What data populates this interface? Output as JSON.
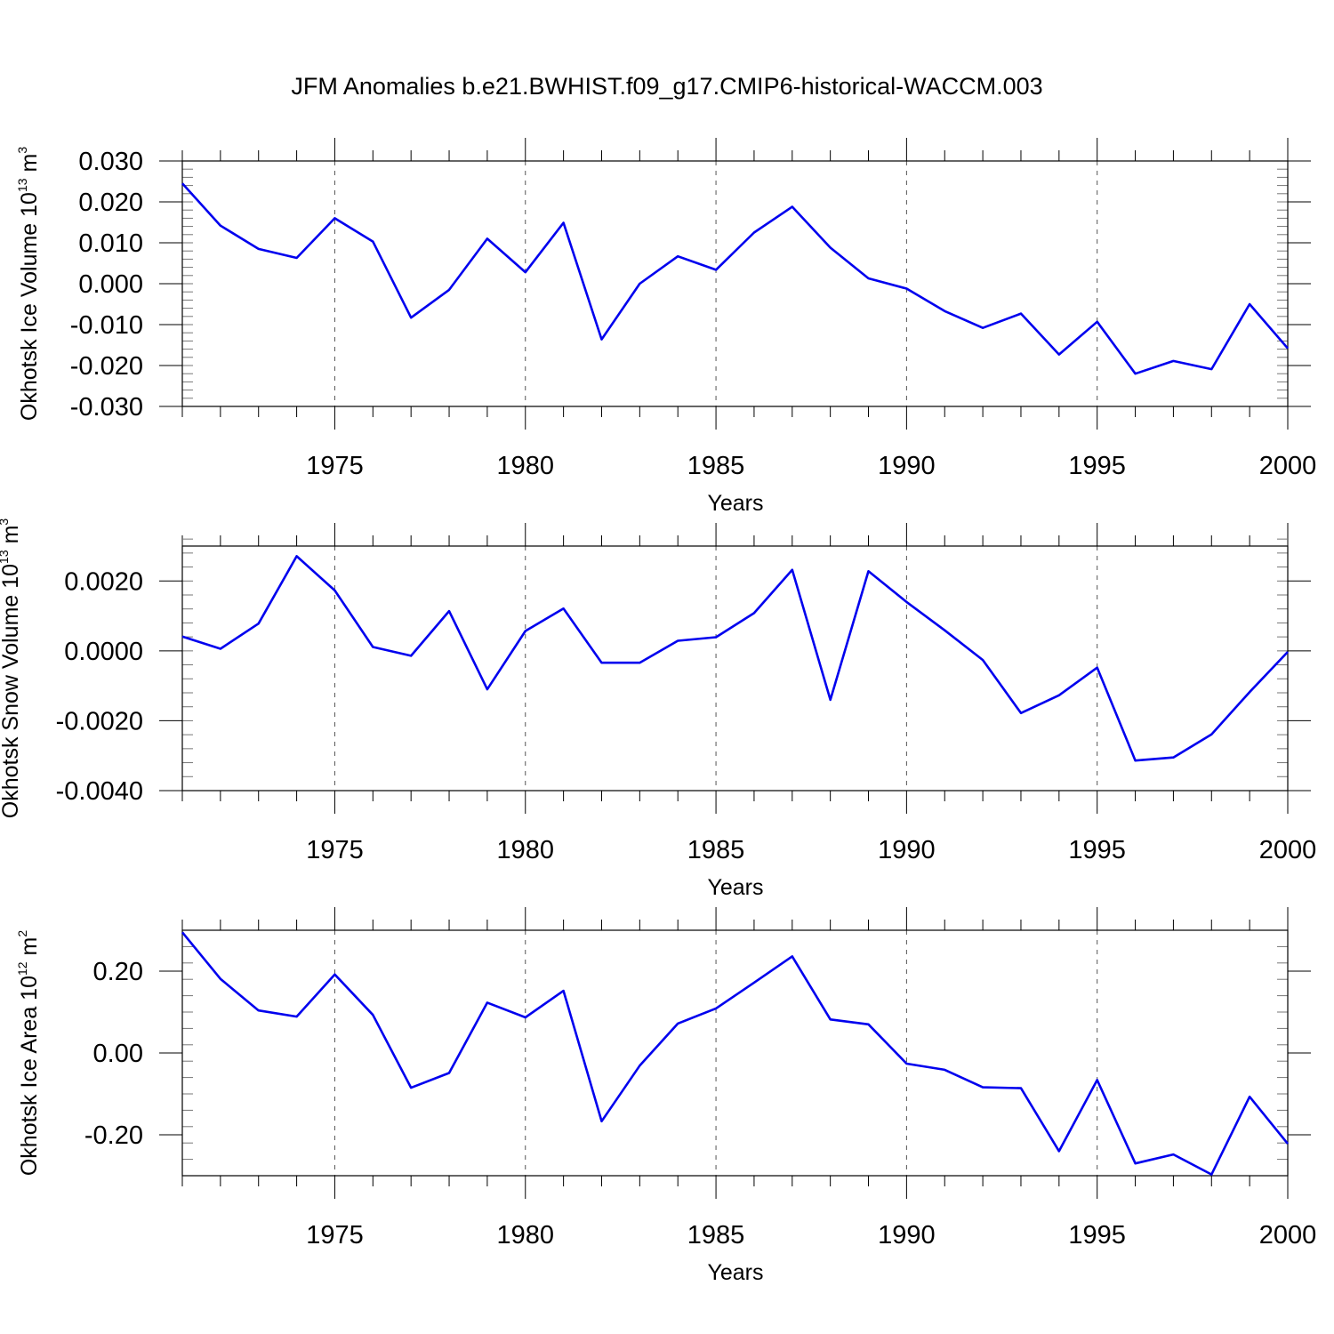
{
  "title": "JFM Anomalies b.e21.BWHIST.f09_g17.CMIP6-historical-WACCM.003",
  "chart_data": [
    {
      "type": "line",
      "xlabel": "Years",
      "ylabel": {
        "text": "Okhotsk Ice Volume 10",
        "exp": "13",
        "unit": " m",
        "unit_exp": "3"
      },
      "xlim": [
        1971,
        2000
      ],
      "ylim": [
        -0.03,
        0.03
      ],
      "yticks": [
        -0.03,
        -0.02,
        -0.01,
        0.0,
        0.01,
        0.02,
        0.03
      ],
      "ytick_labels": [
        "-0.030",
        "-0.020",
        "-0.010",
        "0.000",
        "0.010",
        "0.020",
        "0.030"
      ],
      "xticks": [
        1975,
        1980,
        1985,
        1990,
        1995,
        2000
      ],
      "xtick_labels": [
        "1975",
        "1980",
        "1985",
        "1990",
        "1995",
        "2000"
      ],
      "grid": "vertical dashed at labeled years",
      "color": "#0000ee",
      "x": [
        1971,
        1972,
        1973,
        1974,
        1975,
        1976,
        1977,
        1978,
        1979,
        1980,
        1981,
        1982,
        1983,
        1984,
        1985,
        1986,
        1987,
        1988,
        1989,
        1990,
        1991,
        1992,
        1993,
        1994,
        1995,
        1996,
        1997,
        1998,
        1999,
        2000
      ],
      "y": [
        0.0245,
        0.0142,
        0.0085,
        0.0063,
        0.016,
        0.0103,
        -0.0083,
        -0.0015,
        0.011,
        0.0028,
        0.0149,
        -0.0136,
        0.0,
        0.0067,
        0.0034,
        0.0125,
        0.0188,
        0.0088,
        0.0013,
        -0.0012,
        -0.0067,
        -0.0108,
        -0.0073,
        -0.0173,
        -0.0093,
        -0.022,
        -0.0189,
        -0.0209,
        -0.005,
        -0.0158
      ]
    },
    {
      "type": "line",
      "xlabel": "Years",
      "ylabel": {
        "text": "Okhotsk Snow Volume 10",
        "exp": "13",
        "unit": " m",
        "unit_exp": "3"
      },
      "xlim": [
        1971,
        2000
      ],
      "ylim": [
        -0.004,
        0.003
      ],
      "yticks": [
        -0.004,
        -0.002,
        0.0,
        0.002
      ],
      "ytick_labels": [
        "-0.0040",
        "-0.0020",
        "0.0000",
        "0.0020"
      ],
      "xticks": [
        1975,
        1980,
        1985,
        1990,
        1995,
        2000
      ],
      "xtick_labels": [
        "1975",
        "1980",
        "1985",
        "1990",
        "1995",
        "2000"
      ],
      "grid": "vertical dashed at labeled years",
      "color": "#0000ee",
      "x": [
        1971,
        1972,
        1973,
        1974,
        1975,
        1976,
        1977,
        1978,
        1979,
        1980,
        1981,
        1982,
        1983,
        1984,
        1985,
        1986,
        1987,
        1988,
        1989,
        1990,
        1991,
        1992,
        1993,
        1994,
        1995,
        1996,
        1997,
        1998,
        1999,
        2000
      ],
      "y": [
        0.00041,
        6e-05,
        0.00078,
        0.00271,
        0.00173,
        0.00011,
        -0.00014,
        0.00114,
        -0.0011,
        0.00057,
        0.00121,
        -0.00034,
        -0.00034,
        0.00029,
        0.00039,
        0.00108,
        0.00232,
        -0.0014,
        0.00228,
        0.0014,
        0.00059,
        -0.00026,
        -0.00178,
        -0.00127,
        -0.00048,
        -0.00314,
        -0.00305,
        -0.00239,
        -0.00118,
        -3e-05
      ]
    },
    {
      "type": "line",
      "xlabel": "Years",
      "ylabel": {
        "text": "Okhotsk Ice Area 10",
        "exp": "12",
        "unit": " m",
        "unit_exp": "2"
      },
      "xlim": [
        1971,
        2000
      ],
      "ylim": [
        -0.3,
        0.3
      ],
      "yticks": [
        -0.2,
        0.0,
        0.2
      ],
      "ytick_labels": [
        "-0.20",
        "0.00",
        "0.20"
      ],
      "xticks": [
        1975,
        1980,
        1985,
        1990,
        1995,
        2000
      ],
      "xtick_labels": [
        "1975",
        "1980",
        "1985",
        "1990",
        "1995",
        "2000"
      ],
      "grid": "vertical dashed at labeled years",
      "color": "#0000ee",
      "x": [
        1971,
        1972,
        1973,
        1974,
        1975,
        1976,
        1977,
        1978,
        1979,
        1980,
        1981,
        1982,
        1983,
        1984,
        1985,
        1986,
        1987,
        1988,
        1989,
        1990,
        1991,
        1992,
        1993,
        1994,
        1995,
        1996,
        1997,
        1998,
        1999,
        2000
      ],
      "y": [
        0.295,
        0.181,
        0.104,
        0.089,
        0.192,
        0.093,
        -0.085,
        -0.049,
        0.123,
        0.087,
        0.152,
        -0.167,
        -0.031,
        0.072,
        0.109,
        0.172,
        0.236,
        0.082,
        0.07,
        -0.026,
        -0.041,
        -0.084,
        -0.086,
        -0.24,
        -0.066,
        -0.27,
        -0.248,
        -0.297,
        -0.107,
        -0.222
      ]
    }
  ]
}
